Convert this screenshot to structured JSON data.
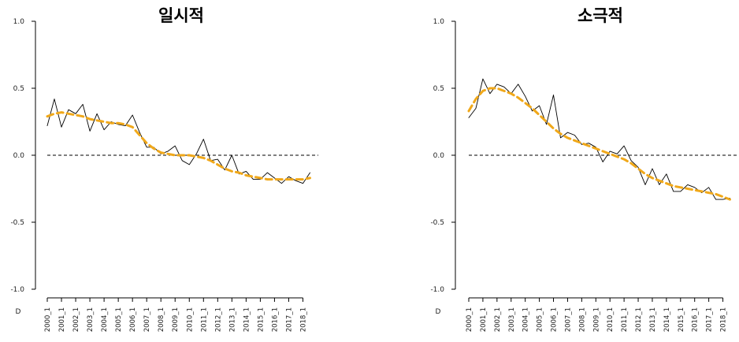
{
  "chart_data": [
    {
      "type": "line",
      "title": "일시적",
      "categories": [
        "2000_1",
        "2001_1",
        "2002_1",
        "2003_1",
        "2004_1",
        "2005_1",
        "2006_1",
        "2007_1",
        "2008_1",
        "2009_1",
        "2010_1",
        "2011_1",
        "2012_1",
        "2013_1",
        "2014_1",
        "2015_1",
        "2016_1",
        "2017_1",
        "2018_1"
      ],
      "ylim": [
        -1.0,
        1.0
      ],
      "yticks": [
        "1.0",
        "0.5",
        "0.0",
        "-0.5",
        "-1.0"
      ],
      "y_tick_values": [
        1.0,
        0.5,
        0.0,
        -0.5,
        -1.0
      ],
      "x_range": [
        2000,
        2018.75
      ],
      "corner_label": "D",
      "reference_line": 0,
      "series": [
        {
          "style": "solid",
          "color": "#000000",
          "x": [
            2000.0,
            2000.5,
            2001.0,
            2001.5,
            2002.0,
            2002.5,
            2003.0,
            2003.5,
            2004.0,
            2004.5,
            2005.0,
            2005.5,
            2006.0,
            2006.5,
            2007.0,
            2007.5,
            2008.0,
            2008.5,
            2009.0,
            2009.5,
            2010.0,
            2010.5,
            2011.0,
            2011.5,
            2012.0,
            2012.5,
            2013.0,
            2013.5,
            2014.0,
            2014.5,
            2015.0,
            2015.5,
            2016.0,
            2016.5,
            2017.0,
            2017.5,
            2018.0,
            2018.5
          ],
          "y": [
            0.22,
            0.42,
            0.21,
            0.34,
            0.31,
            0.38,
            0.18,
            0.31,
            0.19,
            0.25,
            0.23,
            0.22,
            0.3,
            0.17,
            0.06,
            0.06,
            0.01,
            0.03,
            0.07,
            -0.04,
            -0.07,
            0.01,
            0.12,
            -0.04,
            -0.03,
            -0.11,
            0.0,
            -0.14,
            -0.12,
            -0.18,
            -0.18,
            -0.13,
            -0.17,
            -0.21,
            -0.16,
            -0.19,
            -0.21,
            -0.13
          ]
        },
        {
          "style": "dashed",
          "color": "#F0A81A",
          "x": [
            2000.0,
            2000.5,
            2001.0,
            2001.5,
            2002.0,
            2002.5,
            2003.0,
            2003.5,
            2004.0,
            2004.5,
            2005.0,
            2005.5,
            2006.0,
            2006.5,
            2007.0,
            2007.5,
            2008.0,
            2008.5,
            2009.0,
            2009.5,
            2010.0,
            2010.5,
            2011.0,
            2011.5,
            2012.0,
            2012.5,
            2013.0,
            2013.5,
            2014.0,
            2014.5,
            2015.0,
            2015.5,
            2016.0,
            2016.5,
            2017.0,
            2017.5,
            2018.0,
            2018.5
          ],
          "y": [
            0.29,
            0.31,
            0.32,
            0.31,
            0.3,
            0.29,
            0.27,
            0.26,
            0.25,
            0.24,
            0.24,
            0.23,
            0.21,
            0.15,
            0.09,
            0.05,
            0.02,
            0.01,
            0.0,
            0.0,
            0.0,
            -0.01,
            -0.02,
            -0.04,
            -0.07,
            -0.1,
            -0.12,
            -0.13,
            -0.15,
            -0.16,
            -0.17,
            -0.18,
            -0.18,
            -0.18,
            -0.18,
            -0.18,
            -0.18,
            -0.17
          ]
        }
      ]
    },
    {
      "type": "line",
      "title": "소극적",
      "categories": [
        "2000_1",
        "2001_1",
        "2002_1",
        "2003_1",
        "2004_1",
        "2005_1",
        "2006_1",
        "2007_1",
        "2008_1",
        "2009_1",
        "2010_1",
        "2011_1",
        "2012_1",
        "2013_1",
        "2014_1",
        "2015_1",
        "2016_1",
        "2017_1",
        "2018_1"
      ],
      "ylim": [
        -1.0,
        1.0
      ],
      "yticks": [
        "1.0",
        "0.5",
        "0.0",
        "-0.5",
        "-1.0"
      ],
      "y_tick_values": [
        1.0,
        0.5,
        0.0,
        -0.5,
        -1.0
      ],
      "x_range": [
        2000,
        2018.75
      ],
      "corner_label": "D",
      "reference_line": 0,
      "series": [
        {
          "style": "solid",
          "color": "#000000",
          "x": [
            2000.0,
            2000.5,
            2001.0,
            2001.5,
            2002.0,
            2002.5,
            2003.0,
            2003.5,
            2004.0,
            2004.5,
            2005.0,
            2005.5,
            2006.0,
            2006.5,
            2007.0,
            2007.5,
            2008.0,
            2008.5,
            2009.0,
            2009.5,
            2010.0,
            2010.5,
            2011.0,
            2011.5,
            2012.0,
            2012.5,
            2013.0,
            2013.5,
            2014.0,
            2014.5,
            2015.0,
            2015.5,
            2016.0,
            2016.5,
            2017.0,
            2017.5,
            2018.0,
            2018.5
          ],
          "y": [
            0.28,
            0.35,
            0.57,
            0.46,
            0.53,
            0.51,
            0.46,
            0.53,
            0.44,
            0.33,
            0.37,
            0.23,
            0.45,
            0.13,
            0.17,
            0.15,
            0.08,
            0.09,
            0.06,
            -0.05,
            0.03,
            0.01,
            0.07,
            -0.04,
            -0.09,
            -0.22,
            -0.1,
            -0.22,
            -0.14,
            -0.27,
            -0.27,
            -0.22,
            -0.24,
            -0.28,
            -0.24,
            -0.33,
            -0.33,
            -0.32
          ]
        },
        {
          "style": "dashed",
          "color": "#F0A81A",
          "x": [
            2000.0,
            2000.5,
            2001.0,
            2001.5,
            2002.0,
            2002.5,
            2003.0,
            2003.5,
            2004.0,
            2004.5,
            2005.0,
            2005.5,
            2006.0,
            2006.5,
            2007.0,
            2007.5,
            2008.0,
            2008.5,
            2009.0,
            2009.5,
            2010.0,
            2010.5,
            2011.0,
            2011.5,
            2012.0,
            2012.5,
            2013.0,
            2013.5,
            2014.0,
            2014.5,
            2015.0,
            2015.5,
            2016.0,
            2016.5,
            2017.0,
            2017.5,
            2018.0,
            2018.5
          ],
          "y": [
            0.33,
            0.42,
            0.48,
            0.5,
            0.5,
            0.48,
            0.46,
            0.43,
            0.39,
            0.35,
            0.3,
            0.25,
            0.2,
            0.16,
            0.13,
            0.11,
            0.09,
            0.07,
            0.05,
            0.03,
            0.01,
            -0.01,
            -0.03,
            -0.06,
            -0.1,
            -0.14,
            -0.17,
            -0.19,
            -0.21,
            -0.23,
            -0.24,
            -0.25,
            -0.26,
            -0.27,
            -0.28,
            -0.29,
            -0.31,
            -0.33
          ]
        }
      ]
    }
  ]
}
